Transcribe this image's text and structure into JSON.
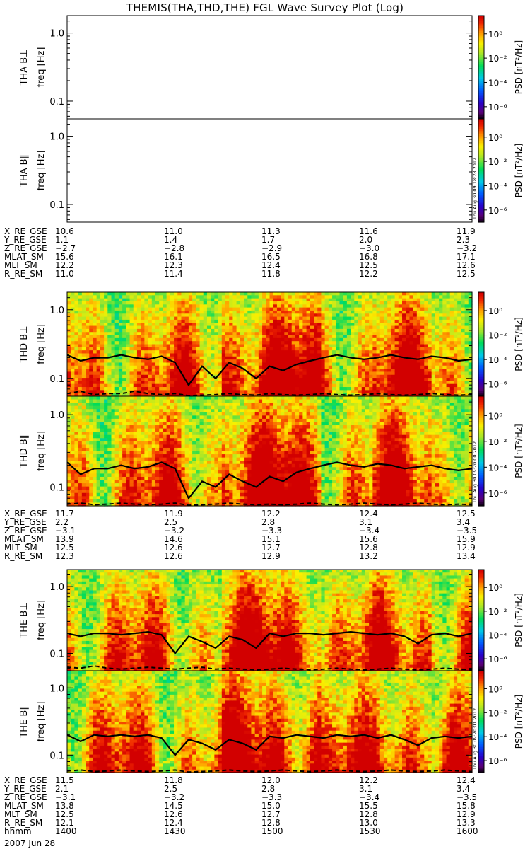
{
  "title": "THEMIS(THA,THD,THE) FGL Wave Survey Plot (Log)",
  "colorbar": {
    "label": "PSD [nT²/Hz]",
    "ticks": [
      "10⁰",
      "10⁻²",
      "10⁻⁴",
      "10⁻⁶"
    ]
  },
  "chart_data": [
    {
      "type": "heatmap",
      "panel": "THA B⊥",
      "probe": "THA",
      "component": "B⊥",
      "ylabel": "freq [Hz]",
      "yscale": "log",
      "ylim": [
        0.055,
        1.8
      ],
      "yticks": [
        "1.0",
        "0.1"
      ],
      "colorbar_range_log10": [
        -7,
        1.5
      ],
      "data_present": false,
      "stamp": ""
    },
    {
      "type": "heatmap",
      "panel": "THA B∥",
      "probe": "THA",
      "component": "B∥",
      "ylabel": "freq [Hz]",
      "yscale": "log",
      "ylim": [
        0.055,
        1.8
      ],
      "yticks": [
        "1.0",
        "0.1"
      ],
      "colorbar_range_log10": [
        -7,
        1.5
      ],
      "data_present": false,
      "stamp": "Thu Aug 30 09:18:28 2012"
    },
    {
      "type": "heatmap",
      "panel": "THD B⊥",
      "probe": "THD",
      "component": "B⊥",
      "ylabel": "freq [Hz]",
      "yscale": "log",
      "ylim": [
        0.055,
        1.8
      ],
      "yticks": [
        "1.0",
        "0.1"
      ],
      "colorbar_range_log10": [
        -7,
        1.5
      ],
      "data_present": true,
      "time_range": [
        "1400",
        "1600"
      ],
      "overlays": {
        "solid_line_hz_approx": [
          0.22,
          0.18,
          0.2,
          0.2,
          0.22,
          0.2,
          0.19,
          0.21,
          0.17,
          0.08,
          0.15,
          0.1,
          0.17,
          0.14,
          0.1,
          0.15,
          0.13,
          0.16,
          0.18,
          0.2,
          0.22,
          0.2,
          0.19,
          0.2,
          0.22,
          0.2,
          0.19,
          0.21,
          0.2,
          0.18,
          0.19
        ],
        "dashed_line_hz_approx": [
          0.06,
          0.065,
          0.058,
          0.06,
          0.06,
          0.065,
          0.06,
          0.058,
          0.06,
          0.056,
          0.057,
          0.058,
          0.06,
          0.058,
          0.057,
          0.06,
          0.058,
          0.057,
          0.058,
          0.06,
          0.058,
          0.057,
          0.058,
          0.06,
          0.058,
          0.057,
          0.058,
          0.06,
          0.058,
          0.057,
          0.058
        ]
      },
      "stamp": ""
    },
    {
      "type": "heatmap",
      "panel": "THD B∥",
      "probe": "THD",
      "component": "B∥",
      "ylabel": "freq [Hz]",
      "yscale": "log",
      "ylim": [
        0.055,
        1.8
      ],
      "yticks": [
        "1.0",
        "0.1"
      ],
      "colorbar_range_log10": [
        -7,
        1.5
      ],
      "data_present": true,
      "time_range": [
        "1400",
        "1600"
      ],
      "overlays": {
        "solid_line_hz_approx": [
          0.22,
          0.15,
          0.18,
          0.18,
          0.2,
          0.18,
          0.19,
          0.22,
          0.18,
          0.07,
          0.12,
          0.1,
          0.15,
          0.12,
          0.1,
          0.14,
          0.12,
          0.16,
          0.18,
          0.2,
          0.22,
          0.2,
          0.19,
          0.21,
          0.2,
          0.18,
          0.19,
          0.2,
          0.18,
          0.17,
          0.18
        ],
        "dashed_line_hz_approx": [
          0.058,
          0.06,
          0.057,
          0.058,
          0.06,
          0.058,
          0.057,
          0.058,
          0.06,
          0.056,
          0.057,
          0.058,
          0.06,
          0.058,
          0.057,
          0.058,
          0.057,
          0.058,
          0.06,
          0.058,
          0.057,
          0.058,
          0.06,
          0.058,
          0.057,
          0.058,
          0.06,
          0.058,
          0.057,
          0.058,
          0.057
        ]
      },
      "stamp": "Thu Aug 30 09:20:00 2012"
    },
    {
      "type": "heatmap",
      "panel": "THE B⊥",
      "probe": "THE",
      "component": "B⊥",
      "ylabel": "freq [Hz]",
      "yscale": "log",
      "ylim": [
        0.055,
        1.8
      ],
      "yticks": [
        "1.0",
        "0.1"
      ],
      "colorbar_range_log10": [
        -7,
        1.5
      ],
      "data_present": true,
      "time_range": [
        "1400",
        "1600"
      ],
      "overlays": {
        "solid_line_hz_approx": [
          0.2,
          0.18,
          0.2,
          0.2,
          0.19,
          0.2,
          0.21,
          0.19,
          0.1,
          0.18,
          0.15,
          0.12,
          0.18,
          0.16,
          0.12,
          0.2,
          0.18,
          0.2,
          0.2,
          0.19,
          0.2,
          0.21,
          0.2,
          0.19,
          0.2,
          0.18,
          0.14,
          0.19,
          0.2,
          0.18,
          0.2
        ],
        "dashed_line_hz_approx": [
          0.062,
          0.06,
          0.065,
          0.06,
          0.058,
          0.06,
          0.062,
          0.06,
          0.058,
          0.06,
          0.062,
          0.058,
          0.06,
          0.058,
          0.057,
          0.058,
          0.06,
          0.058,
          0.057,
          0.058,
          0.06,
          0.058,
          0.057,
          0.058,
          0.06,
          0.058,
          0.057,
          0.058,
          0.06,
          0.058,
          0.057
        ]
      },
      "stamp": ""
    },
    {
      "type": "heatmap",
      "panel": "THE B∥",
      "probe": "THE",
      "component": "B∥",
      "ylabel": "freq [Hz]",
      "yscale": "log",
      "ylim": [
        0.055,
        1.8
      ],
      "yticks": [
        "1.0",
        "0.1"
      ],
      "colorbar_range_log10": [
        -7,
        1.5
      ],
      "data_present": true,
      "time_range": [
        "1400",
        "1600"
      ],
      "overlays": {
        "solid_line_hz_approx": [
          0.2,
          0.16,
          0.2,
          0.19,
          0.2,
          0.19,
          0.2,
          0.18,
          0.1,
          0.17,
          0.15,
          0.12,
          0.17,
          0.15,
          0.12,
          0.19,
          0.18,
          0.2,
          0.19,
          0.18,
          0.2,
          0.19,
          0.2,
          0.18,
          0.2,
          0.17,
          0.14,
          0.18,
          0.19,
          0.18,
          0.19
        ],
        "dashed_line_hz_approx": [
          0.058,
          0.06,
          0.057,
          0.058,
          0.06,
          0.058,
          0.057,
          0.058,
          0.06,
          0.056,
          0.057,
          0.058,
          0.06,
          0.058,
          0.057,
          0.058,
          0.06,
          0.058,
          0.057,
          0.058,
          0.06,
          0.058,
          0.057,
          0.058,
          0.06,
          0.058,
          0.057,
          0.058,
          0.06,
          0.058,
          0.057
        ]
      },
      "stamp": "Thu Aug 30 09:20:01 2012"
    }
  ],
  "ephemeris": [
    {
      "probe": "THA",
      "rows": [
        {
          "name": "X_RE_GSE",
          "values": [
            "10.6",
            "11.0",
            "11.3",
            "11.6",
            "11.9"
          ]
        },
        {
          "name": "Y_RE_GSE",
          "values": [
            "1.1",
            "1.4",
            "1.7",
            "2.0",
            "2.3"
          ]
        },
        {
          "name": "Z_RE_GSE",
          "values": [
            "−2.7",
            "−2.8",
            "−2.9",
            "−3.0",
            "−3.2"
          ]
        },
        {
          "name": "MLAT_SM",
          "values": [
            "15.6",
            "16.1",
            "16.5",
            "16.8",
            "17.1"
          ]
        },
        {
          "name": "MLT_SM",
          "values": [
            "12.2",
            "12.3",
            "12.4",
            "12.5",
            "12.6"
          ]
        },
        {
          "name": "R_RE_SM",
          "values": [
            "11.0",
            "11.4",
            "11.8",
            "12.2",
            "12.5"
          ]
        }
      ]
    },
    {
      "probe": "THD",
      "rows": [
        {
          "name": "X_RE_GSE",
          "values": [
            "11.7",
            "11.9",
            "12.2",
            "12.4",
            "12.5"
          ]
        },
        {
          "name": "Y_RE_GSE",
          "values": [
            "2.2",
            "2.5",
            "2.8",
            "3.1",
            "3.4"
          ]
        },
        {
          "name": "Z_RE_GSE",
          "values": [
            "−3.1",
            "−3.2",
            "−3.3",
            "−3.4",
            "−3.5"
          ]
        },
        {
          "name": "MLAT_SM",
          "values": [
            "13.9",
            "14.6",
            "15.1",
            "15.6",
            "15.9"
          ]
        },
        {
          "name": "MLT_SM",
          "values": [
            "12.5",
            "12.6",
            "12.7",
            "12.8",
            "12.9"
          ]
        },
        {
          "name": "R_RE_SM",
          "values": [
            "12.3",
            "12.6",
            "12.9",
            "13.2",
            "13.4"
          ]
        }
      ]
    },
    {
      "probe": "THE",
      "rows": [
        {
          "name": "X_RE_GSE",
          "values": [
            "11.5",
            "11.8",
            "12.0",
            "12.2",
            "12.4"
          ]
        },
        {
          "name": "Y_RE_GSE",
          "values": [
            "2.1",
            "2.5",
            "2.8",
            "3.1",
            "3.4"
          ]
        },
        {
          "name": "Z_RE_GSE",
          "values": [
            "−3.1",
            "−3.2",
            "−3.3",
            "−3.4",
            "−3.5"
          ]
        },
        {
          "name": "MLAT_SM",
          "values": [
            "13.8",
            "14.5",
            "15.0",
            "15.5",
            "15.8"
          ]
        },
        {
          "name": "MLT_SM",
          "values": [
            "12.5",
            "12.6",
            "12.7",
            "12.8",
            "12.9"
          ]
        },
        {
          "name": "R_RE_SM",
          "values": [
            "12.1",
            "12.4",
            "12.8",
            "13.0",
            "13.3"
          ]
        },
        {
          "name": "hhmm",
          "values": [
            "1400",
            "1430",
            "1500",
            "1530",
            "1600"
          ]
        }
      ]
    }
  ],
  "date_label": "2007 Jun 28"
}
